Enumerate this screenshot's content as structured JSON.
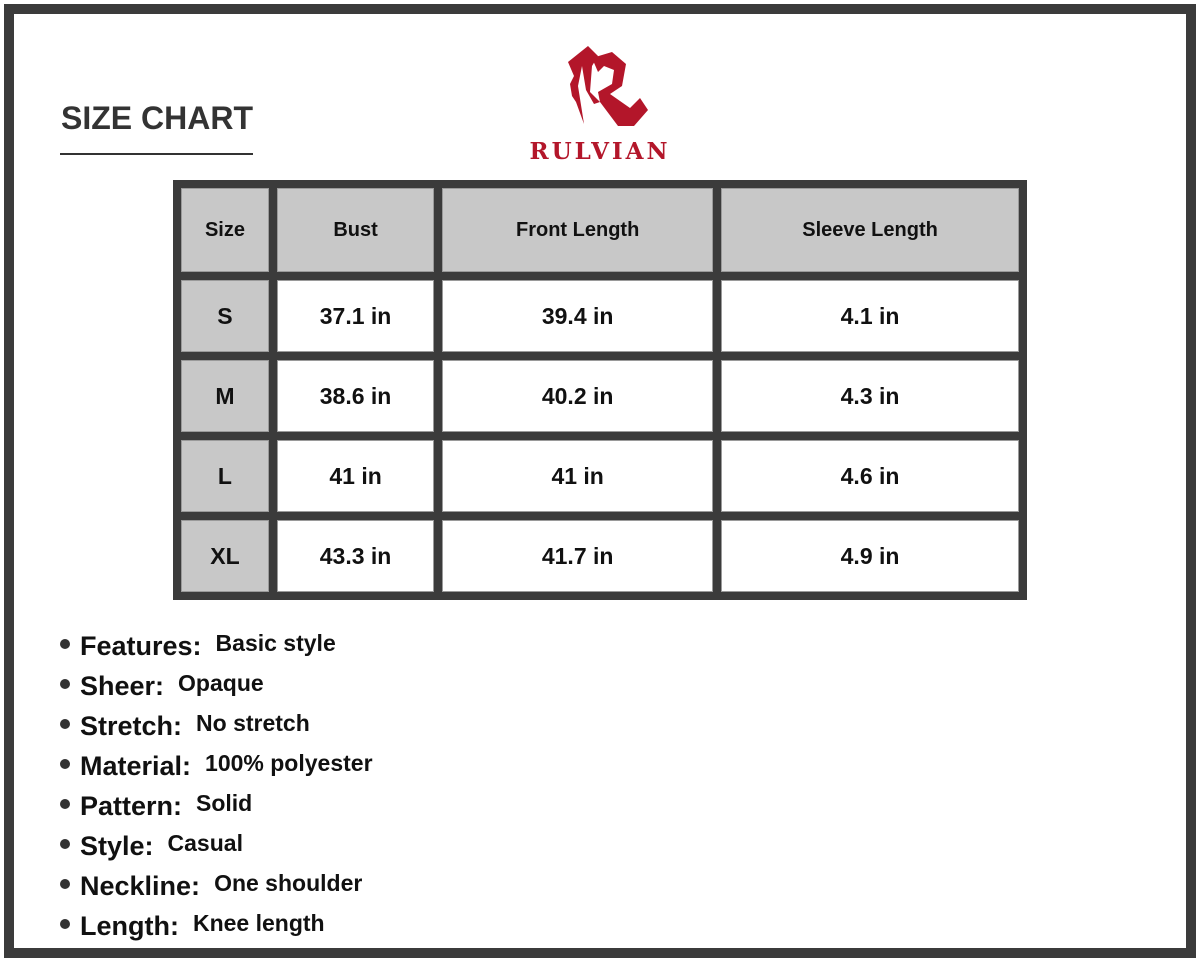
{
  "title": "SIZE CHART",
  "brand": {
    "name": "RULVIAN",
    "color": "#b3162a"
  },
  "table": {
    "headers": [
      "Size",
      "Bust",
      "Front Length",
      "Sleeve Length"
    ],
    "rows": [
      [
        "S",
        "37.1 in",
        "39.4 in",
        "4.1 in"
      ],
      [
        "M",
        "38.6 in",
        "40.2 in",
        "4.3 in"
      ],
      [
        "L",
        "41 in",
        "41 in",
        "4.6 in"
      ],
      [
        "XL",
        "43.3 in",
        "41.7 in",
        "4.9 in"
      ]
    ]
  },
  "features": [
    {
      "label": "Features:",
      "value": "Basic style"
    },
    {
      "label": "Sheer:",
      "value": "Opaque"
    },
    {
      "label": "Stretch:",
      "value": "No stretch"
    },
    {
      "label": "Material:",
      "value": "100% polyester"
    },
    {
      "label": "Pattern:",
      "value": "Solid"
    },
    {
      "label": "Style:",
      "value": "Casual"
    },
    {
      "label": "Neckline:",
      "value": "One shoulder"
    },
    {
      "label": "Length:",
      "value": "Knee length"
    }
  ]
}
